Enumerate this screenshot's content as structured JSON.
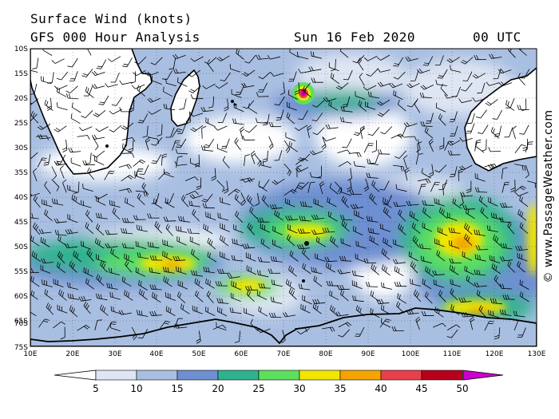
{
  "header": {
    "title": "Surface Wind (knots)",
    "subtitle": "GFS 000 Hour Analysis",
    "date": "Sun 16 Feb 2020",
    "time": "00 UTC"
  },
  "map": {
    "lat_labels": [
      "10S",
      "15S",
      "20S",
      "25S",
      "30S",
      "35S",
      "40S",
      "45S",
      "50S",
      "55S",
      "60S",
      "65S",
      "70S",
      "75S"
    ],
    "lon_labels": [
      "10E",
      "20E",
      "30E",
      "40E",
      "50E",
      "60E",
      "70E",
      "80E",
      "90E",
      "100E",
      "110E",
      "120E",
      "130E"
    ],
    "lat_range": [
      -10,
      -75
    ],
    "lon_range": [
      10,
      130
    ],
    "gridlines": true
  },
  "colorbar": {
    "labels": [
      "5",
      "10",
      "15",
      "20",
      "25",
      "30",
      "35",
      "40",
      "45",
      "50"
    ],
    "colors": [
      "#ffffff",
      "#dfe6f3",
      "#a9bfe2",
      "#6e8fd1",
      "#2fb38e",
      "#5de05d",
      "#f2e600",
      "#f4a400",
      "#e8404a",
      "#b8001a",
      "#cc00cc"
    ]
  },
  "credit": "© www.PassageWeather.com"
}
